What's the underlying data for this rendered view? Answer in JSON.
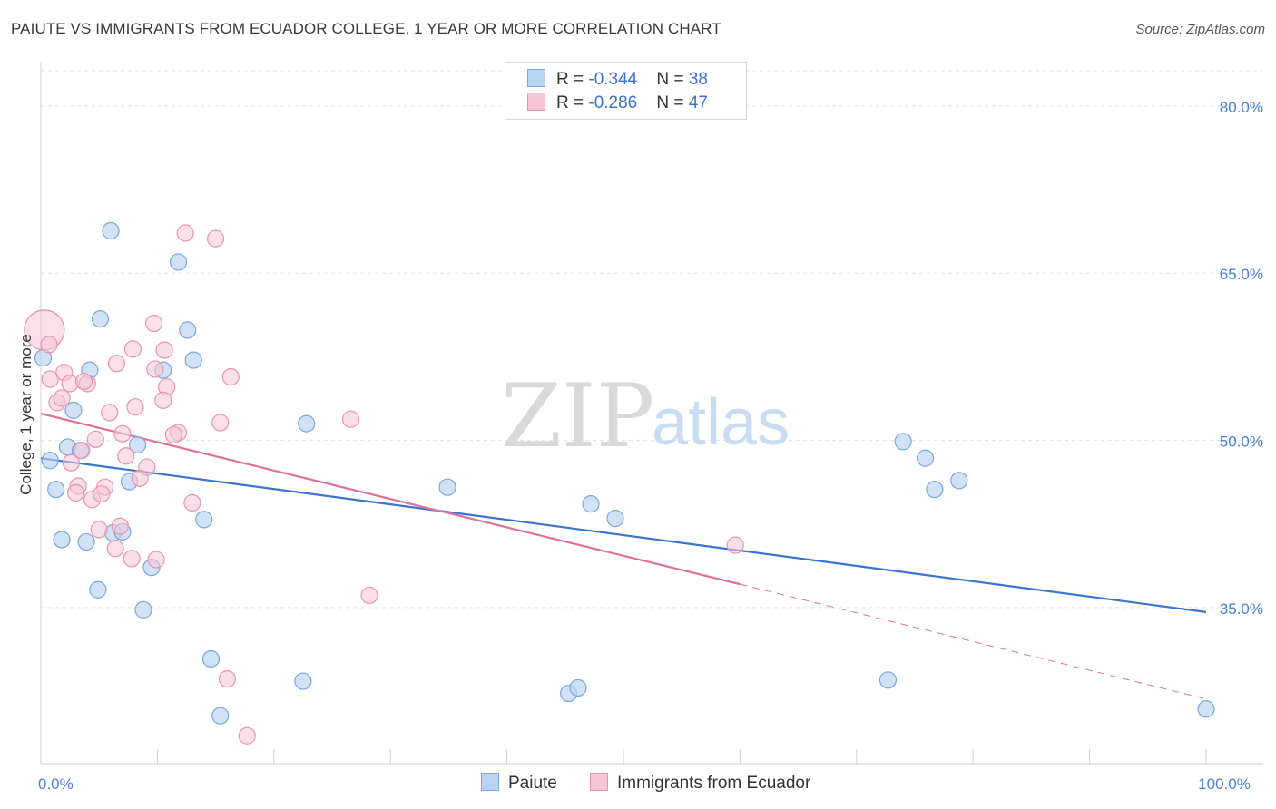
{
  "title": "PAIUTE VS IMMIGRANTS FROM ECUADOR COLLEGE, 1 YEAR OR MORE CORRELATION CHART",
  "source": "Source: ZipAtlas.com",
  "watermark": {
    "zip": "ZIP",
    "atlas": "atlas"
  },
  "legend": {
    "paiute": {
      "r_label": "R = ",
      "r_value": "-0.344",
      "n_label": "N = ",
      "n_value": "38"
    },
    "ecuador": {
      "r_label": "R = ",
      "r_value": "-0.286",
      "n_label": "N = ",
      "n_value": "47"
    }
  },
  "colors": {
    "paiute_fill": "#b8d3f2",
    "paiute_stroke": "#7aa6dc",
    "paiute_line": "#3a74d2",
    "ecuador_fill": "#f7c5d5",
    "ecuador_stroke": "#e793b1",
    "ecuador_line": "#e06f99",
    "grid": "#e3e3e3",
    "axis_text": "#4a7fd4"
  },
  "chart_data": {
    "type": "scatter",
    "title": "PAIUTE VS IMMIGRANTS FROM ECUADOR COLLEGE, 1 YEAR OR MORE CORRELATION CHART",
    "xlabel": "",
    "ylabel": "College, 1 year or more",
    "xlim": [
      0,
      100
    ],
    "ylim": [
      21,
      83
    ],
    "x_ticks": [
      {
        "v": 0,
        "label": "0.0%"
      },
      {
        "v": 100,
        "label": "100.0%"
      }
    ],
    "y_ticks": [
      {
        "v": 35,
        "label": "35.0%"
      },
      {
        "v": 50,
        "label": "50.0%"
      },
      {
        "v": 65,
        "label": "65.0%"
      },
      {
        "v": 80,
        "label": "80.0%"
      }
    ],
    "series": [
      {
        "name": "Paiute",
        "points": [
          [
            6.0,
            68.8
          ],
          [
            11.8,
            66.0
          ],
          [
            5.1,
            60.9
          ],
          [
            12.6,
            59.9
          ],
          [
            0.2,
            57.4
          ],
          [
            13.1,
            57.2
          ],
          [
            4.2,
            56.3
          ],
          [
            10.5,
            56.3
          ],
          [
            2.8,
            52.7
          ],
          [
            22.8,
            51.5
          ],
          [
            2.3,
            49.4
          ],
          [
            8.3,
            49.6
          ],
          [
            3.4,
            49.1
          ],
          [
            0.8,
            48.2
          ],
          [
            1.3,
            45.6
          ],
          [
            7.6,
            46.3
          ],
          [
            34.9,
            45.8
          ],
          [
            1.8,
            41.1
          ],
          [
            3.9,
            40.9
          ],
          [
            6.2,
            41.7
          ],
          [
            7.0,
            41.8
          ],
          [
            14.0,
            42.9
          ],
          [
            9.5,
            38.6
          ],
          [
            4.9,
            36.6
          ],
          [
            8.8,
            34.8
          ],
          [
            14.6,
            30.4
          ],
          [
            22.5,
            28.4
          ],
          [
            15.4,
            25.3
          ],
          [
            45.3,
            27.3
          ],
          [
            46.1,
            27.8
          ],
          [
            74.0,
            49.9
          ],
          [
            75.9,
            48.4
          ],
          [
            76.7,
            45.6
          ],
          [
            78.8,
            46.4
          ],
          [
            47.2,
            44.3
          ],
          [
            49.3,
            43.0
          ],
          [
            72.7,
            28.5
          ],
          [
            100.0,
            25.9
          ]
        ]
      },
      {
        "name": "Immigrants from Ecuador",
        "points": [
          [
            0.3,
            59.9
          ],
          [
            0.7,
            58.6
          ],
          [
            12.4,
            68.6
          ],
          [
            15.0,
            68.1
          ],
          [
            9.7,
            60.5
          ],
          [
            0.8,
            55.5
          ],
          [
            1.4,
            53.4
          ],
          [
            1.8,
            53.8
          ],
          [
            2.0,
            56.1
          ],
          [
            2.5,
            55.1
          ],
          [
            4.0,
            55.1
          ],
          [
            3.7,
            55.3
          ],
          [
            5.9,
            52.5
          ],
          [
            8.1,
            53.0
          ],
          [
            7.9,
            58.2
          ],
          [
            6.5,
            56.9
          ],
          [
            10.6,
            58.1
          ],
          [
            9.8,
            56.4
          ],
          [
            10.8,
            54.8
          ],
          [
            10.5,
            53.6
          ],
          [
            16.3,
            55.7
          ],
          [
            15.4,
            51.6
          ],
          [
            7.0,
            50.6
          ],
          [
            11.8,
            50.7
          ],
          [
            4.7,
            50.1
          ],
          [
            3.5,
            49.1
          ],
          [
            2.6,
            48.0
          ],
          [
            7.3,
            48.6
          ],
          [
            9.1,
            47.6
          ],
          [
            8.5,
            46.6
          ],
          [
            3.2,
            45.9
          ],
          [
            3.0,
            45.3
          ],
          [
            5.5,
            45.8
          ],
          [
            4.4,
            44.7
          ],
          [
            5.2,
            45.2
          ],
          [
            13.0,
            44.4
          ],
          [
            26.6,
            51.9
          ],
          [
            6.4,
            40.3
          ],
          [
            6.8,
            42.3
          ],
          [
            5.0,
            42.0
          ],
          [
            7.8,
            39.4
          ],
          [
            9.9,
            39.3
          ],
          [
            28.2,
            36.1
          ],
          [
            59.6,
            40.6
          ],
          [
            16.0,
            28.6
          ],
          [
            17.7,
            23.5
          ],
          [
            11.4,
            50.5
          ]
        ]
      }
    ],
    "trendlines": [
      {
        "series": "Paiute",
        "x": [
          0,
          100
        ],
        "y": [
          48.4,
          34.6
        ],
        "style": "solid"
      },
      {
        "series": "Immigrants from Ecuador",
        "x": [
          0,
          60
        ],
        "y": [
          52.4,
          37.1
        ],
        "style": "solid"
      },
      {
        "series": "Immigrants from Ecuador",
        "x": [
          60,
          100
        ],
        "y": [
          37.1,
          26.8
        ],
        "style": "dashed"
      }
    ],
    "legend": [
      "Paiute",
      "Immigrants from Ecuador"
    ],
    "grid": true
  }
}
